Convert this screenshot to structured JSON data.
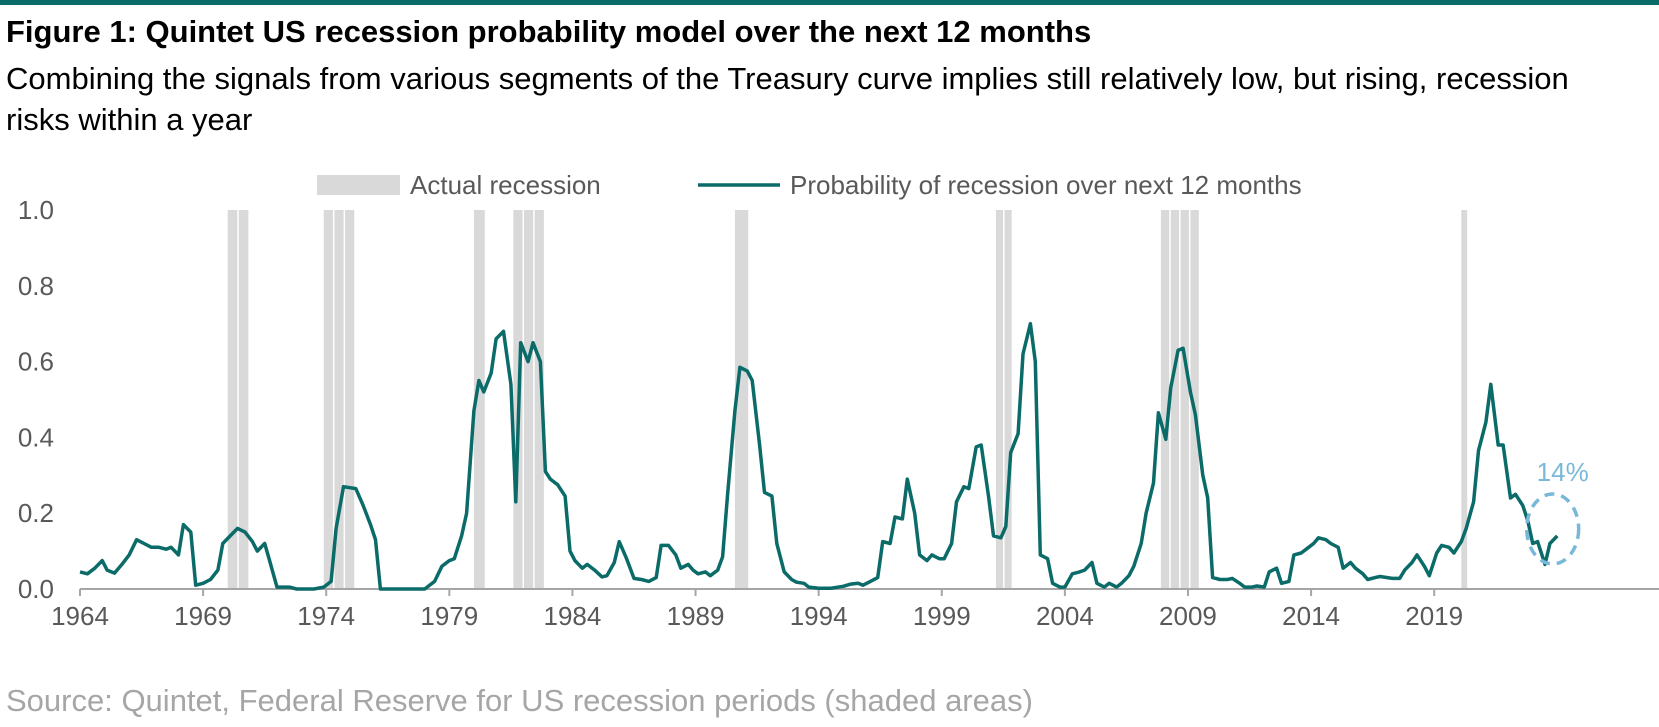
{
  "header": {
    "title": "Figure 1: Quintet US recession probability model over the next 12 months",
    "subtitle": "Combining the signals from various segments of the Treasury curve implies still relatively low, but rising, recession risks within a year"
  },
  "footer": {
    "source": "Source: Quintet, Federal Reserve for US recession periods (shaded areas)"
  },
  "colors": {
    "line": "#0a6b69",
    "recession": "#d9d9d9",
    "annotation": "#7ab8d9",
    "axis": "#a6a6a6",
    "text": "#595959"
  },
  "chart_data": {
    "type": "line",
    "xlim": [
      1964,
      2023.5
    ],
    "ylim": [
      0,
      1
    ],
    "yticks": [
      0.0,
      0.2,
      0.4,
      0.6,
      0.8,
      1.0
    ],
    "ytick_labels": [
      "0.0",
      "0.2",
      "0.4",
      "0.6",
      "0.8",
      "1.0"
    ],
    "xticks": [
      1964,
      1969,
      1974,
      1979,
      1984,
      1989,
      1994,
      1999,
      2004,
      2009,
      2014,
      2019
    ],
    "xtick_labels": [
      "1964",
      "1969",
      "1974",
      "1979",
      "1984",
      "1989",
      "1994",
      "1999",
      "2004",
      "2009",
      "2014",
      "2019"
    ],
    "legend": {
      "placement": "top-center",
      "recession_label": "Actual recession",
      "line_label": "Probability of recession over next 12 months"
    },
    "recessions": [
      [
        1970.0,
        1970.9
      ],
      [
        1973.9,
        1975.2
      ],
      [
        1980.0,
        1980.5
      ],
      [
        1981.6,
        1982.9
      ],
      [
        1990.6,
        1991.2
      ],
      [
        2001.2,
        2001.9
      ],
      [
        2007.9,
        2009.5
      ],
      [
        2020.1,
        2020.4
      ]
    ],
    "annotation": {
      "label": "14%",
      "x": 2023.0,
      "y": 0.14
    },
    "series": [
      {
        "name": "Probability of recession over next 12 months",
        "points": [
          [
            1964.0,
            0.045
          ],
          [
            1964.3,
            0.04
          ],
          [
            1964.6,
            0.055
          ],
          [
            1964.9,
            0.075
          ],
          [
            1965.1,
            0.05
          ],
          [
            1965.4,
            0.042
          ],
          [
            1965.7,
            0.065
          ],
          [
            1966.0,
            0.09
          ],
          [
            1966.3,
            0.13
          ],
          [
            1966.6,
            0.12
          ],
          [
            1966.9,
            0.11
          ],
          [
            1967.2,
            0.11
          ],
          [
            1967.5,
            0.105
          ],
          [
            1967.7,
            0.11
          ],
          [
            1968.0,
            0.09
          ],
          [
            1968.2,
            0.17
          ],
          [
            1968.5,
            0.15
          ],
          [
            1968.7,
            0.01
          ],
          [
            1969.0,
            0.015
          ],
          [
            1969.3,
            0.025
          ],
          [
            1969.6,
            0.05
          ],
          [
            1969.8,
            0.12
          ],
          [
            1970.1,
            0.14
          ],
          [
            1970.4,
            0.16
          ],
          [
            1970.7,
            0.15
          ],
          [
            1971.0,
            0.125
          ],
          [
            1971.2,
            0.1
          ],
          [
            1971.5,
            0.12
          ],
          [
            1971.7,
            0.075
          ],
          [
            1972.0,
            0.005
          ],
          [
            1972.5,
            0.005
          ],
          [
            1972.8,
            0.0
          ],
          [
            1973.5,
            0.0
          ],
          [
            1973.9,
            0.005
          ],
          [
            1974.2,
            0.02
          ],
          [
            1974.4,
            0.16
          ],
          [
            1974.7,
            0.27
          ],
          [
            1975.2,
            0.265
          ],
          [
            1975.5,
            0.22
          ],
          [
            1975.8,
            0.17
          ],
          [
            1976.0,
            0.13
          ],
          [
            1976.2,
            0.0
          ],
          [
            1977.0,
            0.0
          ],
          [
            1978.0,
            0.0
          ],
          [
            1978.4,
            0.02
          ],
          [
            1978.7,
            0.06
          ],
          [
            1979.0,
            0.075
          ],
          [
            1979.2,
            0.08
          ],
          [
            1979.5,
            0.14
          ],
          [
            1979.7,
            0.2
          ],
          [
            1980.0,
            0.47
          ],
          [
            1980.2,
            0.55
          ],
          [
            1980.4,
            0.52
          ],
          [
            1980.7,
            0.57
          ],
          [
            1980.9,
            0.66
          ],
          [
            1981.2,
            0.68
          ],
          [
            1981.5,
            0.54
          ],
          [
            1981.7,
            0.23
          ],
          [
            1981.9,
            0.65
          ],
          [
            1982.2,
            0.6
          ],
          [
            1982.4,
            0.65
          ],
          [
            1982.7,
            0.6
          ],
          [
            1982.9,
            0.31
          ],
          [
            1983.1,
            0.29
          ],
          [
            1983.4,
            0.275
          ],
          [
            1983.7,
            0.245
          ],
          [
            1983.9,
            0.1
          ],
          [
            1984.1,
            0.075
          ],
          [
            1984.4,
            0.055
          ],
          [
            1984.6,
            0.065
          ],
          [
            1984.9,
            0.05
          ],
          [
            1985.2,
            0.032
          ],
          [
            1985.4,
            0.035
          ],
          [
            1985.7,
            0.07
          ],
          [
            1985.9,
            0.125
          ],
          [
            1986.2,
            0.08
          ],
          [
            1986.5,
            0.028
          ],
          [
            1986.8,
            0.025
          ],
          [
            1987.1,
            0.02
          ],
          [
            1987.4,
            0.03
          ],
          [
            1987.6,
            0.115
          ],
          [
            1987.9,
            0.115
          ],
          [
            1988.2,
            0.09
          ],
          [
            1988.4,
            0.055
          ],
          [
            1988.7,
            0.065
          ],
          [
            1988.9,
            0.05
          ],
          [
            1989.1,
            0.04
          ],
          [
            1989.4,
            0.045
          ],
          [
            1989.6,
            0.035
          ],
          [
            1989.9,
            0.05
          ],
          [
            1990.1,
            0.085
          ],
          [
            1990.3,
            0.25
          ],
          [
            1990.6,
            0.47
          ],
          [
            1990.8,
            0.585
          ],
          [
            1991.1,
            0.575
          ],
          [
            1991.3,
            0.55
          ],
          [
            1991.6,
            0.38
          ],
          [
            1991.8,
            0.255
          ],
          [
            1992.1,
            0.245
          ],
          [
            1992.3,
            0.12
          ],
          [
            1992.6,
            0.045
          ],
          [
            1992.9,
            0.025
          ],
          [
            1993.1,
            0.018
          ],
          [
            1993.4,
            0.015
          ],
          [
            1993.6,
            0.005
          ],
          [
            1994.0,
            0.002
          ],
          [
            1994.5,
            0.002
          ],
          [
            1995.0,
            0.007
          ],
          [
            1995.3,
            0.013
          ],
          [
            1995.6,
            0.015
          ],
          [
            1995.8,
            0.01
          ],
          [
            1996.1,
            0.02
          ],
          [
            1996.4,
            0.03
          ],
          [
            1996.6,
            0.125
          ],
          [
            1996.9,
            0.12
          ],
          [
            1997.1,
            0.19
          ],
          [
            1997.4,
            0.185
          ],
          [
            1997.6,
            0.29
          ],
          [
            1997.9,
            0.2
          ],
          [
            1998.1,
            0.09
          ],
          [
            1998.4,
            0.075
          ],
          [
            1998.6,
            0.09
          ],
          [
            1998.9,
            0.08
          ],
          [
            1999.1,
            0.08
          ],
          [
            1999.4,
            0.12
          ],
          [
            1999.6,
            0.23
          ],
          [
            1999.9,
            0.27
          ],
          [
            2000.1,
            0.265
          ],
          [
            2000.4,
            0.375
          ],
          [
            2000.6,
            0.38
          ],
          [
            2000.9,
            0.245
          ],
          [
            2001.1,
            0.14
          ],
          [
            2001.4,
            0.135
          ],
          [
            2001.6,
            0.165
          ],
          [
            2001.8,
            0.36
          ],
          [
            2002.1,
            0.41
          ],
          [
            2002.3,
            0.62
          ],
          [
            2002.6,
            0.7
          ],
          [
            2002.8,
            0.6
          ],
          [
            2003.0,
            0.09
          ],
          [
            2003.3,
            0.08
          ],
          [
            2003.5,
            0.015
          ],
          [
            2003.8,
            0.005
          ],
          [
            2004.0,
            0.005
          ],
          [
            2004.3,
            0.04
          ],
          [
            2004.6,
            0.045
          ],
          [
            2004.8,
            0.05
          ],
          [
            2005.1,
            0.07
          ],
          [
            2005.3,
            0.015
          ],
          [
            2005.6,
            0.005
          ],
          [
            2005.8,
            0.015
          ],
          [
            2006.1,
            0.005
          ],
          [
            2006.3,
            0.015
          ],
          [
            2006.6,
            0.035
          ],
          [
            2006.8,
            0.06
          ],
          [
            2007.1,
            0.12
          ],
          [
            2007.3,
            0.2
          ],
          [
            2007.6,
            0.28
          ],
          [
            2007.8,
            0.465
          ],
          [
            2008.1,
            0.395
          ],
          [
            2008.3,
            0.53
          ],
          [
            2008.6,
            0.63
          ],
          [
            2008.8,
            0.635
          ],
          [
            2009.1,
            0.52
          ],
          [
            2009.3,
            0.46
          ],
          [
            2009.6,
            0.3
          ],
          [
            2009.8,
            0.24
          ],
          [
            2010.0,
            0.03
          ],
          [
            2010.3,
            0.025
          ],
          [
            2010.6,
            0.025
          ],
          [
            2010.8,
            0.028
          ],
          [
            2011.1,
            0.015
          ],
          [
            2011.3,
            0.005
          ],
          [
            2011.6,
            0.005
          ],
          [
            2011.8,
            0.008
          ],
          [
            2012.1,
            0.005
          ],
          [
            2012.3,
            0.045
          ],
          [
            2012.6,
            0.055
          ],
          [
            2012.8,
            0.015
          ],
          [
            2013.1,
            0.02
          ],
          [
            2013.3,
            0.09
          ],
          [
            2013.6,
            0.095
          ],
          [
            2013.8,
            0.105
          ],
          [
            2014.1,
            0.12
          ],
          [
            2014.3,
            0.135
          ],
          [
            2014.6,
            0.13
          ],
          [
            2014.8,
            0.12
          ],
          [
            2015.1,
            0.11
          ],
          [
            2015.3,
            0.055
          ],
          [
            2015.6,
            0.07
          ],
          [
            2015.8,
            0.055
          ],
          [
            2016.1,
            0.04
          ],
          [
            2016.3,
            0.025
          ],
          [
            2016.6,
            0.03
          ],
          [
            2016.8,
            0.033
          ],
          [
            2017.1,
            0.03
          ],
          [
            2017.3,
            0.028
          ],
          [
            2017.6,
            0.028
          ],
          [
            2017.8,
            0.05
          ],
          [
            2018.1,
            0.07
          ],
          [
            2018.3,
            0.09
          ],
          [
            2018.6,
            0.06
          ],
          [
            2018.8,
            0.035
          ],
          [
            2019.1,
            0.095
          ],
          [
            2019.3,
            0.115
          ],
          [
            2019.6,
            0.11
          ],
          [
            2019.8,
            0.095
          ],
          [
            2020.1,
            0.125
          ],
          [
            2020.3,
            0.16
          ],
          [
            2020.6,
            0.23
          ],
          [
            2020.8,
            0.365
          ],
          [
            2021.1,
            0.44
          ],
          [
            2021.3,
            0.54
          ],
          [
            2021.6,
            0.38
          ],
          [
            2021.8,
            0.38
          ],
          [
            2022.1,
            0.24
          ],
          [
            2022.3,
            0.25
          ],
          [
            2022.6,
            0.22
          ],
          [
            2022.8,
            0.18
          ],
          [
            2023.0,
            0.12
          ],
          [
            2023.2,
            0.125
          ],
          [
            2023.5,
            0.065
          ],
          [
            2023.7,
            0.12
          ],
          [
            2024.0,
            0.14
          ]
        ]
      }
    ]
  }
}
